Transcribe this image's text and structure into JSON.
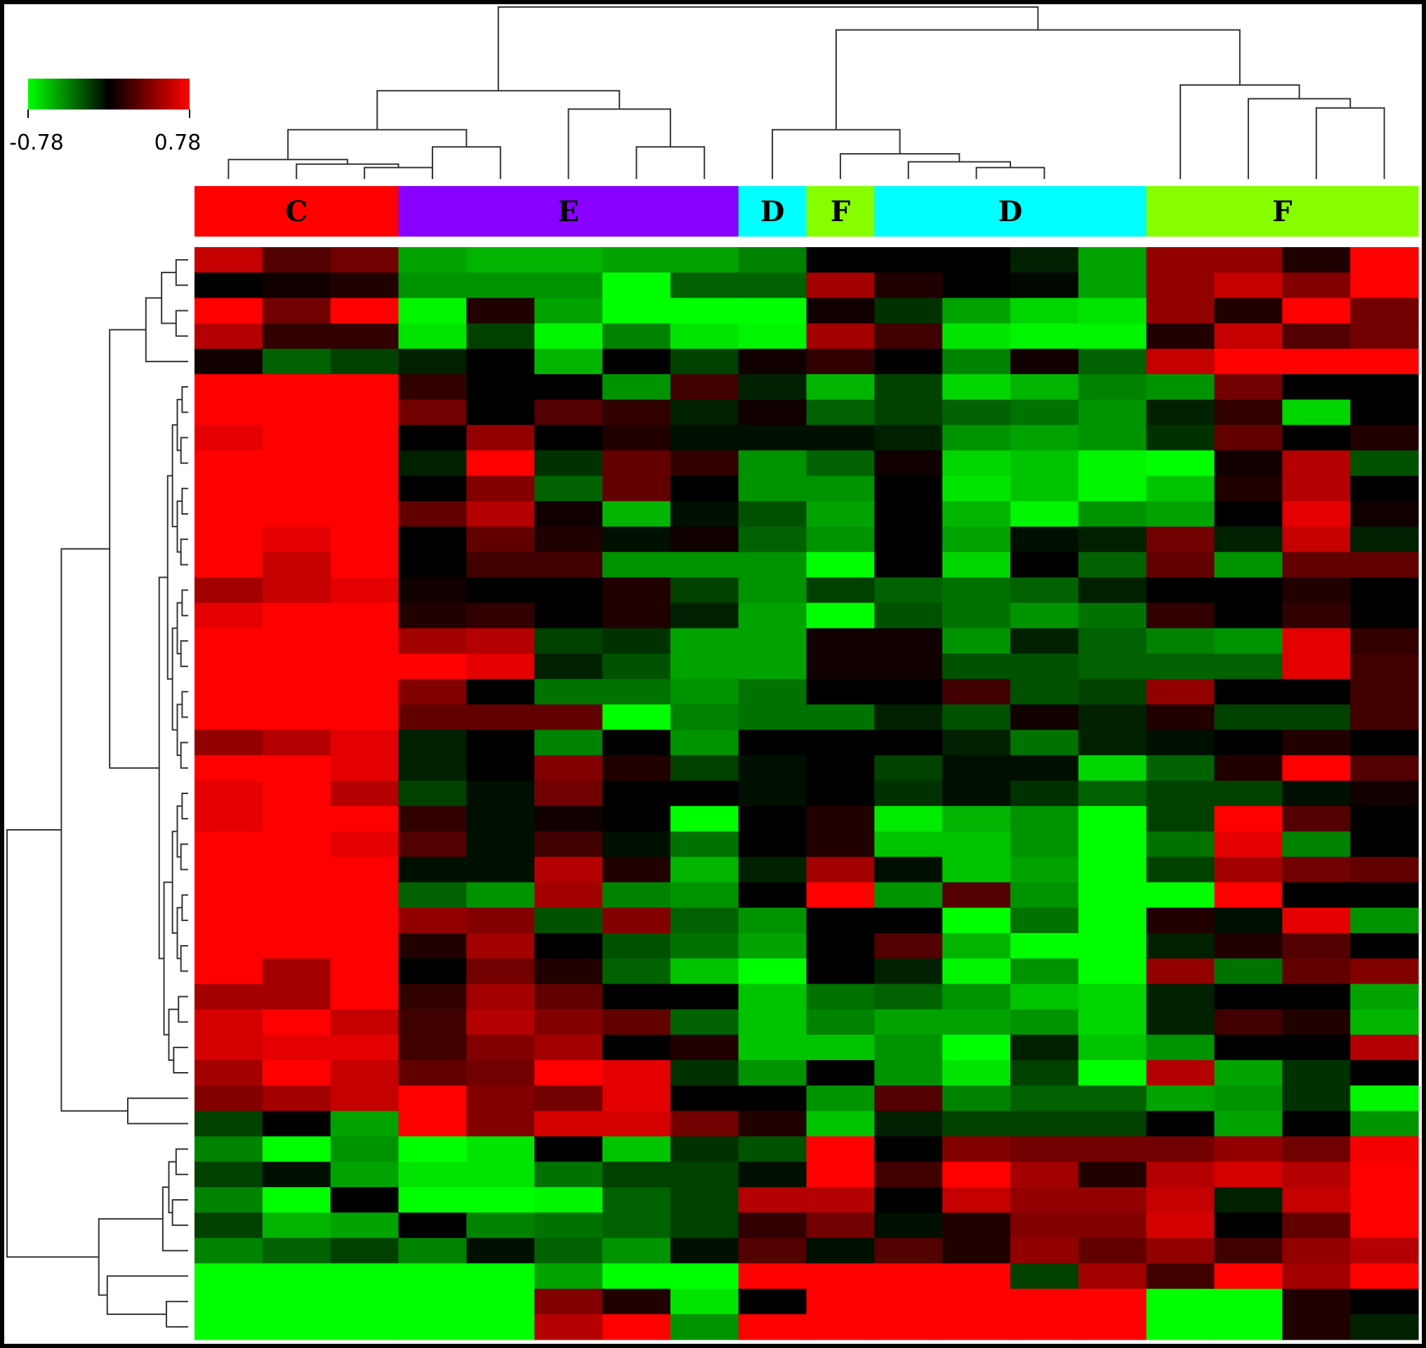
{
  "chart_data": {
    "type": "heatmap",
    "title": "",
    "xlabel": "",
    "ylabel": "",
    "color_scale": {
      "min": -0.78,
      "max": 0.78,
      "min_label": "-0.78",
      "max_label": "0.78",
      "low_color": "#00ff00",
      "mid_color": "#000000",
      "high_color": "#ff0000"
    },
    "column_groups": [
      {
        "label": "C",
        "color": "#ff0000",
        "columns": 3
      },
      {
        "label": "E",
        "color": "#8800ff",
        "columns": 5
      },
      {
        "label": "D",
        "color": "#00ffff",
        "columns": 1
      },
      {
        "label": "F",
        "color": "#88ff00",
        "columns": 1
      },
      {
        "label": "D",
        "color": "#00ffff",
        "columns": 4
      },
      {
        "label": "F",
        "color": "#88ff00",
        "columns": 4
      }
    ],
    "values": [
      [
        0.6,
        0.25,
        0.35,
        -0.5,
        -0.55,
        -0.55,
        -0.5,
        -0.5,
        -0.4,
        0.0,
        0.0,
        0.0,
        -0.1,
        -0.5,
        0.45,
        0.45,
        0.1,
        0.78
      ],
      [
        0.0,
        0.05,
        0.1,
        -0.45,
        -0.45,
        -0.45,
        -0.78,
        -0.3,
        -0.3,
        0.5,
        0.1,
        0.0,
        -0.02,
        -0.5,
        0.45,
        0.6,
        0.4,
        0.78
      ],
      [
        0.78,
        0.35,
        0.78,
        -0.75,
        0.1,
        -0.5,
        -0.78,
        -0.78,
        -0.78,
        0.05,
        -0.15,
        -0.5,
        -0.65,
        -0.7,
        0.45,
        0.1,
        0.78,
        0.35
      ],
      [
        0.55,
        0.15,
        0.15,
        -0.7,
        -0.2,
        -0.75,
        -0.4,
        -0.7,
        -0.75,
        0.5,
        0.2,
        -0.7,
        -0.75,
        -0.75,
        0.1,
        0.6,
        0.25,
        0.35
      ],
      [
        0.05,
        -0.3,
        -0.2,
        -0.1,
        0.0,
        -0.55,
        0.0,
        -0.2,
        0.05,
        0.15,
        0.0,
        -0.4,
        0.05,
        -0.3,
        0.6,
        0.78,
        0.78,
        0.78
      ],
      [
        0.78,
        0.78,
        0.78,
        0.15,
        0.0,
        0.0,
        -0.45,
        0.2,
        -0.1,
        -0.55,
        -0.2,
        -0.65,
        -0.55,
        -0.4,
        -0.45,
        0.35,
        0.0,
        0.0
      ],
      [
        0.78,
        0.78,
        0.78,
        0.35,
        0.0,
        0.25,
        0.15,
        -0.1,
        0.05,
        -0.3,
        -0.2,
        -0.3,
        -0.35,
        -0.45,
        -0.1,
        0.15,
        -0.65,
        0.0
      ],
      [
        0.7,
        0.78,
        0.78,
        0.0,
        0.45,
        0.0,
        0.1,
        -0.05,
        -0.05,
        -0.05,
        -0.1,
        -0.45,
        -0.5,
        -0.45,
        -0.15,
        0.3,
        0.0,
        0.1
      ],
      [
        0.78,
        0.78,
        0.78,
        -0.1,
        0.78,
        -0.15,
        0.3,
        0.15,
        -0.45,
        -0.3,
        0.05,
        -0.65,
        -0.6,
        -0.75,
        -0.78,
        0.05,
        0.55,
        -0.25
      ],
      [
        0.78,
        0.78,
        0.78,
        0.0,
        0.4,
        -0.3,
        0.3,
        0.0,
        -0.45,
        -0.45,
        0.0,
        -0.7,
        -0.6,
        -0.75,
        -0.6,
        0.1,
        0.55,
        0.0
      ],
      [
        0.78,
        0.78,
        0.78,
        0.3,
        0.55,
        0.05,
        -0.55,
        -0.05,
        -0.25,
        -0.5,
        0.0,
        -0.55,
        -0.75,
        -0.45,
        -0.5,
        0.0,
        0.7,
        0.05
      ],
      [
        0.78,
        0.7,
        0.78,
        0.0,
        0.3,
        0.1,
        -0.05,
        0.05,
        -0.3,
        -0.45,
        0.0,
        -0.5,
        -0.05,
        -0.1,
        0.35,
        -0.1,
        0.6,
        -0.1
      ],
      [
        0.78,
        0.6,
        0.78,
        0.0,
        0.2,
        0.2,
        -0.45,
        -0.45,
        -0.45,
        -0.78,
        0.0,
        -0.65,
        0.0,
        -0.3,
        0.3,
        -0.45,
        0.3,
        0.3
      ],
      [
        0.5,
        0.6,
        0.7,
        0.05,
        0.0,
        0.0,
        0.1,
        -0.2,
        -0.45,
        -0.2,
        -0.3,
        -0.35,
        -0.3,
        -0.1,
        0.0,
        0.0,
        0.1,
        0.0
      ],
      [
        0.7,
        0.78,
        0.78,
        0.1,
        0.15,
        0.0,
        0.1,
        -0.1,
        -0.5,
        -0.78,
        -0.25,
        -0.35,
        -0.45,
        -0.35,
        0.15,
        0.0,
        0.15,
        0.0
      ],
      [
        0.78,
        0.78,
        0.78,
        0.5,
        0.55,
        -0.2,
        -0.15,
        -0.5,
        -0.5,
        0.05,
        0.05,
        -0.45,
        -0.1,
        -0.3,
        -0.4,
        -0.45,
        0.7,
        0.15
      ],
      [
        0.78,
        0.78,
        0.78,
        0.78,
        0.7,
        -0.1,
        -0.25,
        -0.5,
        -0.5,
        0.05,
        0.05,
        -0.25,
        -0.25,
        -0.3,
        -0.3,
        -0.3,
        0.7,
        0.2
      ],
      [
        0.78,
        0.78,
        0.78,
        0.4,
        0.0,
        -0.35,
        -0.35,
        -0.45,
        -0.35,
        0.0,
        0.0,
        0.2,
        -0.25,
        -0.2,
        0.45,
        0.0,
        0.0,
        0.2
      ],
      [
        0.78,
        0.78,
        0.78,
        0.3,
        0.3,
        0.3,
        -0.78,
        -0.4,
        -0.35,
        -0.35,
        -0.1,
        -0.25,
        0.05,
        -0.1,
        0.1,
        -0.2,
        -0.2,
        0.2
      ],
      [
        0.45,
        0.55,
        0.7,
        -0.1,
        0.0,
        -0.4,
        0.0,
        -0.45,
        0.0,
        0.0,
        0.0,
        -0.1,
        -0.35,
        -0.1,
        -0.05,
        0.0,
        0.1,
        0.0
      ],
      [
        0.78,
        0.78,
        0.7,
        -0.1,
        0.0,
        0.4,
        0.1,
        -0.2,
        -0.05,
        0.0,
        -0.2,
        -0.05,
        -0.05,
        -0.65,
        -0.3,
        0.1,
        0.78,
        0.25
      ],
      [
        0.7,
        0.78,
        0.55,
        -0.2,
        -0.05,
        0.35,
        0.0,
        0.0,
        -0.05,
        0.0,
        -0.15,
        -0.05,
        -0.15,
        -0.3,
        -0.2,
        -0.2,
        -0.05,
        0.05
      ],
      [
        0.7,
        0.78,
        0.78,
        0.15,
        -0.05,
        0.05,
        0.0,
        -0.78,
        0.0,
        0.1,
        -0.72,
        -0.55,
        -0.45,
        -0.78,
        -0.2,
        0.78,
        0.25,
        0.0
      ],
      [
        0.78,
        0.78,
        0.7,
        0.25,
        -0.05,
        0.2,
        -0.05,
        -0.35,
        0.0,
        0.1,
        -0.6,
        -0.6,
        -0.45,
        -0.78,
        -0.35,
        0.7,
        -0.4,
        0.0
      ],
      [
        0.78,
        0.78,
        0.78,
        -0.05,
        -0.05,
        0.55,
        0.1,
        -0.55,
        -0.1,
        0.5,
        -0.05,
        -0.6,
        -0.5,
        -0.78,
        -0.2,
        0.5,
        0.35,
        0.3
      ],
      [
        0.78,
        0.78,
        0.78,
        -0.3,
        -0.45,
        0.5,
        -0.4,
        -0.45,
        0.0,
        0.78,
        -0.45,
        0.25,
        -0.45,
        -0.78,
        -0.78,
        0.78,
        0.0,
        0.0
      ],
      [
        0.78,
        0.78,
        0.78,
        0.45,
        0.4,
        -0.25,
        0.4,
        -0.3,
        -0.45,
        0.0,
        0.0,
        -0.78,
        -0.35,
        -0.78,
        0.1,
        -0.05,
        0.7,
        -0.45
      ],
      [
        0.78,
        0.78,
        0.78,
        0.1,
        0.5,
        0.0,
        -0.25,
        -0.35,
        -0.5,
        0.0,
        0.25,
        -0.55,
        -0.78,
        -0.78,
        -0.1,
        0.1,
        0.25,
        0.0
      ],
      [
        0.78,
        0.5,
        0.78,
        0.0,
        0.35,
        0.1,
        -0.3,
        -0.6,
        -0.78,
        0.0,
        -0.1,
        -0.75,
        -0.45,
        -0.78,
        0.45,
        -0.35,
        0.3,
        0.4
      ],
      [
        0.5,
        0.5,
        0.78,
        0.15,
        0.5,
        0.3,
        0.0,
        0.0,
        -0.6,
        -0.35,
        -0.3,
        -0.45,
        -0.6,
        -0.65,
        -0.1,
        0.0,
        0.0,
        -0.5
      ],
      [
        0.65,
        0.78,
        0.6,
        0.2,
        0.55,
        0.4,
        0.3,
        -0.3,
        -0.6,
        -0.4,
        -0.5,
        -0.5,
        -0.45,
        -0.65,
        -0.1,
        0.2,
        0.1,
        -0.55
      ],
      [
        0.65,
        0.7,
        0.7,
        0.2,
        0.4,
        0.5,
        0.0,
        0.1,
        -0.6,
        -0.6,
        -0.45,
        -0.78,
        -0.1,
        -0.6,
        -0.45,
        0.0,
        0.0,
        0.55
      ],
      [
        0.5,
        0.78,
        0.6,
        0.3,
        0.35,
        0.78,
        0.7,
        -0.15,
        -0.45,
        0.0,
        -0.45,
        -0.7,
        -0.2,
        -0.78,
        0.55,
        -0.5,
        -0.15,
        0.0
      ],
      [
        0.4,
        0.5,
        0.6,
        0.78,
        0.4,
        0.35,
        0.7,
        0.0,
        0.0,
        -0.45,
        0.25,
        -0.4,
        -0.3,
        -0.3,
        -0.5,
        -0.45,
        -0.15,
        -0.75
      ],
      [
        -0.2,
        0.0,
        -0.5,
        0.78,
        0.4,
        0.65,
        0.65,
        0.35,
        0.1,
        -0.6,
        -0.1,
        -0.2,
        -0.2,
        -0.2,
        0.0,
        -0.5,
        0.0,
        -0.45
      ],
      [
        -0.4,
        -0.78,
        -0.45,
        -0.78,
        -0.7,
        0.0,
        -0.6,
        -0.15,
        -0.25,
        0.78,
        0.0,
        0.4,
        0.35,
        0.35,
        0.35,
        0.45,
        0.35,
        0.75
      ],
      [
        -0.2,
        -0.05,
        -0.5,
        -0.7,
        -0.7,
        -0.35,
        -0.2,
        -0.2,
        -0.05,
        0.78,
        0.2,
        0.78,
        0.5,
        0.1,
        0.55,
        0.65,
        0.55,
        0.78
      ],
      [
        -0.4,
        -0.78,
        0.0,
        -0.78,
        -0.78,
        -0.75,
        -0.3,
        -0.2,
        0.55,
        0.55,
        0.0,
        0.6,
        0.45,
        0.45,
        0.6,
        -0.1,
        0.6,
        0.78
      ],
      [
        -0.2,
        -0.55,
        -0.5,
        0.0,
        -0.4,
        -0.35,
        -0.3,
        -0.2,
        0.15,
        0.35,
        -0.05,
        0.1,
        0.4,
        0.4,
        0.65,
        0.0,
        0.3,
        0.78
      ],
      [
        -0.4,
        -0.3,
        -0.2,
        -0.4,
        -0.05,
        -0.3,
        -0.45,
        -0.05,
        0.25,
        -0.05,
        0.25,
        0.1,
        0.45,
        0.3,
        0.45,
        0.2,
        0.45,
        0.55
      ],
      [
        -0.78,
        -0.78,
        -0.78,
        -0.78,
        -0.78,
        -0.5,
        -0.78,
        -0.78,
        0.78,
        0.78,
        0.78,
        0.78,
        -0.2,
        0.5,
        0.2,
        0.78,
        0.5,
        0.78
      ],
      [
        -0.78,
        -0.78,
        -0.78,
        -0.78,
        -0.78,
        0.4,
        0.1,
        -0.7,
        0.0,
        0.78,
        0.78,
        0.78,
        0.78,
        0.78,
        -0.78,
        -0.78,
        0.1,
        0.0
      ],
      [
        -0.78,
        -0.78,
        -0.78,
        -0.78,
        -0.78,
        0.55,
        0.78,
        -0.45,
        0.78,
        0.78,
        0.78,
        0.78,
        0.78,
        0.78,
        -0.78,
        -0.78,
        0.1,
        -0.1
      ]
    ]
  }
}
